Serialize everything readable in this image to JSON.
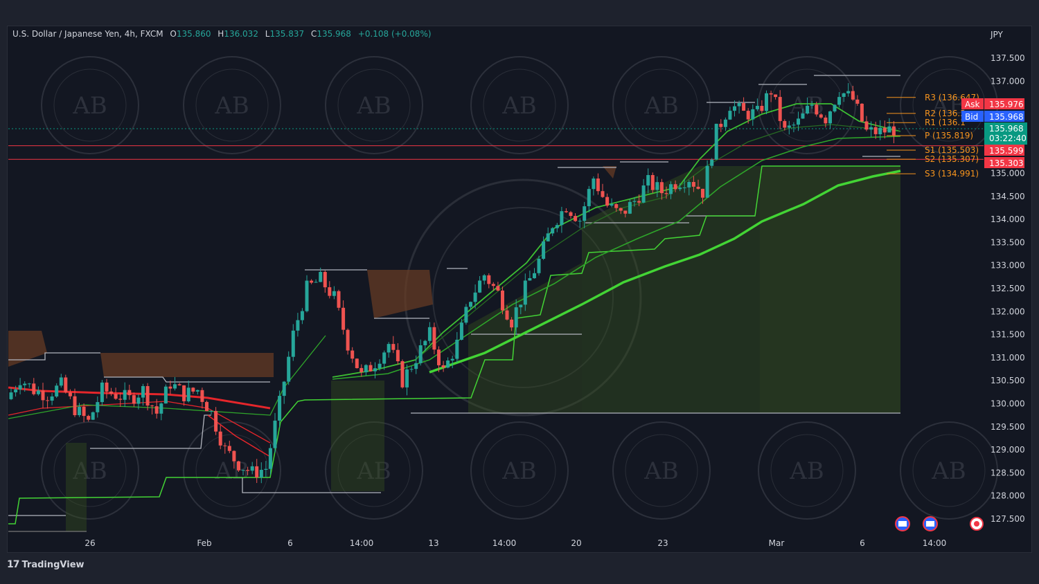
{
  "legend": {
    "symbol": "U.S. Dollar / Japanese Yen, 4h, FXCM",
    "o_label": "O",
    "o": "135.860",
    "h_label": "H",
    "h": "136.032",
    "l_label": "L",
    "l": "135.837",
    "c_label": "C",
    "c": "135.968",
    "change": "+0.108 (+0.08%)"
  },
  "branding": {
    "name": "TradingView"
  },
  "colors": {
    "up": "#26a69a",
    "down": "#ef5350",
    "background": "#131722",
    "pivot": "#f7941d",
    "ask": "#f23645",
    "bid": "#2962ff",
    "last": "#089981",
    "ma": "#43d435",
    "ma_bear": "#e5262b",
    "cloud": "#3b5a1e",
    "cloud_bear": "#6b3d23"
  },
  "chart_data": {
    "type": "candlestick",
    "title": "U.S. Dollar / Japanese Yen, 4h, FXCM",
    "currency": "JPY",
    "ylim": [
      127.25,
      137.55
    ],
    "y_ticks": [
      "137.500",
      "137.000",
      "136.500",
      "136.000",
      "135.500",
      "135.000",
      "134.500",
      "134.000",
      "133.500",
      "133.000",
      "132.500",
      "132.000",
      "131.500",
      "131.000",
      "130.500",
      "130.000",
      "129.500",
      "129.000",
      "128.500",
      "128.000",
      "127.500"
    ],
    "x_ticks": [
      "26",
      "Feb",
      "6",
      "14:00",
      "13",
      "14:00",
      "20",
      "23",
      "Mar",
      "6",
      "14:00"
    ],
    "close_path": [
      130.1,
      130.55,
      130.3,
      130.2,
      130.4,
      129.9,
      129.6,
      130.3,
      130.2,
      130.1,
      130.3,
      129.8,
      130.45,
      130.2,
      130.3,
      129.8,
      129.0,
      128.7,
      128.5,
      128.6,
      130.0,
      131.5,
      132.5,
      132.7,
      132.3,
      131.3,
      130.6,
      130.9,
      131.3,
      130.5,
      131.0,
      131.5,
      130.7,
      131.3,
      132.3,
      132.8,
      132.4,
      131.8,
      132.5,
      133.1,
      133.9,
      134.3,
      134.0,
      134.9,
      134.3,
      134.1,
      134.4,
      134.8,
      134.6,
      134.8,
      134.9,
      134.6,
      135.9,
      136.5,
      136.3,
      136.3,
      136.8,
      135.9,
      136.1,
      136.5,
      136.2,
      136.8,
      136.6,
      135.9,
      135.9,
      135.97
    ],
    "pivots": [
      {
        "label": "R3 (136.647)",
        "value": 136.647
      },
      {
        "label": "R2 (136.3",
        "value": 136.3
      },
      {
        "label": "R1 (136.1",
        "value": 136.1
      },
      {
        "label": "P (135.819)",
        "value": 135.819
      },
      {
        "label": "S1 (135.503)",
        "value": 135.503
      },
      {
        "label": "S2 (135.307)",
        "value": 135.307
      },
      {
        "label": "S3 (134.991)",
        "value": 134.991
      }
    ],
    "price_tags": [
      {
        "label": "Ask",
        "value": "135.976",
        "color": "#f23645"
      },
      {
        "label": "Bid",
        "value": "135.968",
        "color": "#2962ff"
      },
      {
        "label": "",
        "value": "135.968",
        "sub": "03:22:40",
        "color": "#089981"
      },
      {
        "label": "",
        "value": "135.599",
        "color": "#f23645"
      },
      {
        "label": "",
        "value": "135.303",
        "color": "#f23645"
      }
    ],
    "horizontal_lines": [
      135.599,
      135.303
    ],
    "ma_fast_end": 135.9,
    "ma_slow_end": 135.0
  }
}
